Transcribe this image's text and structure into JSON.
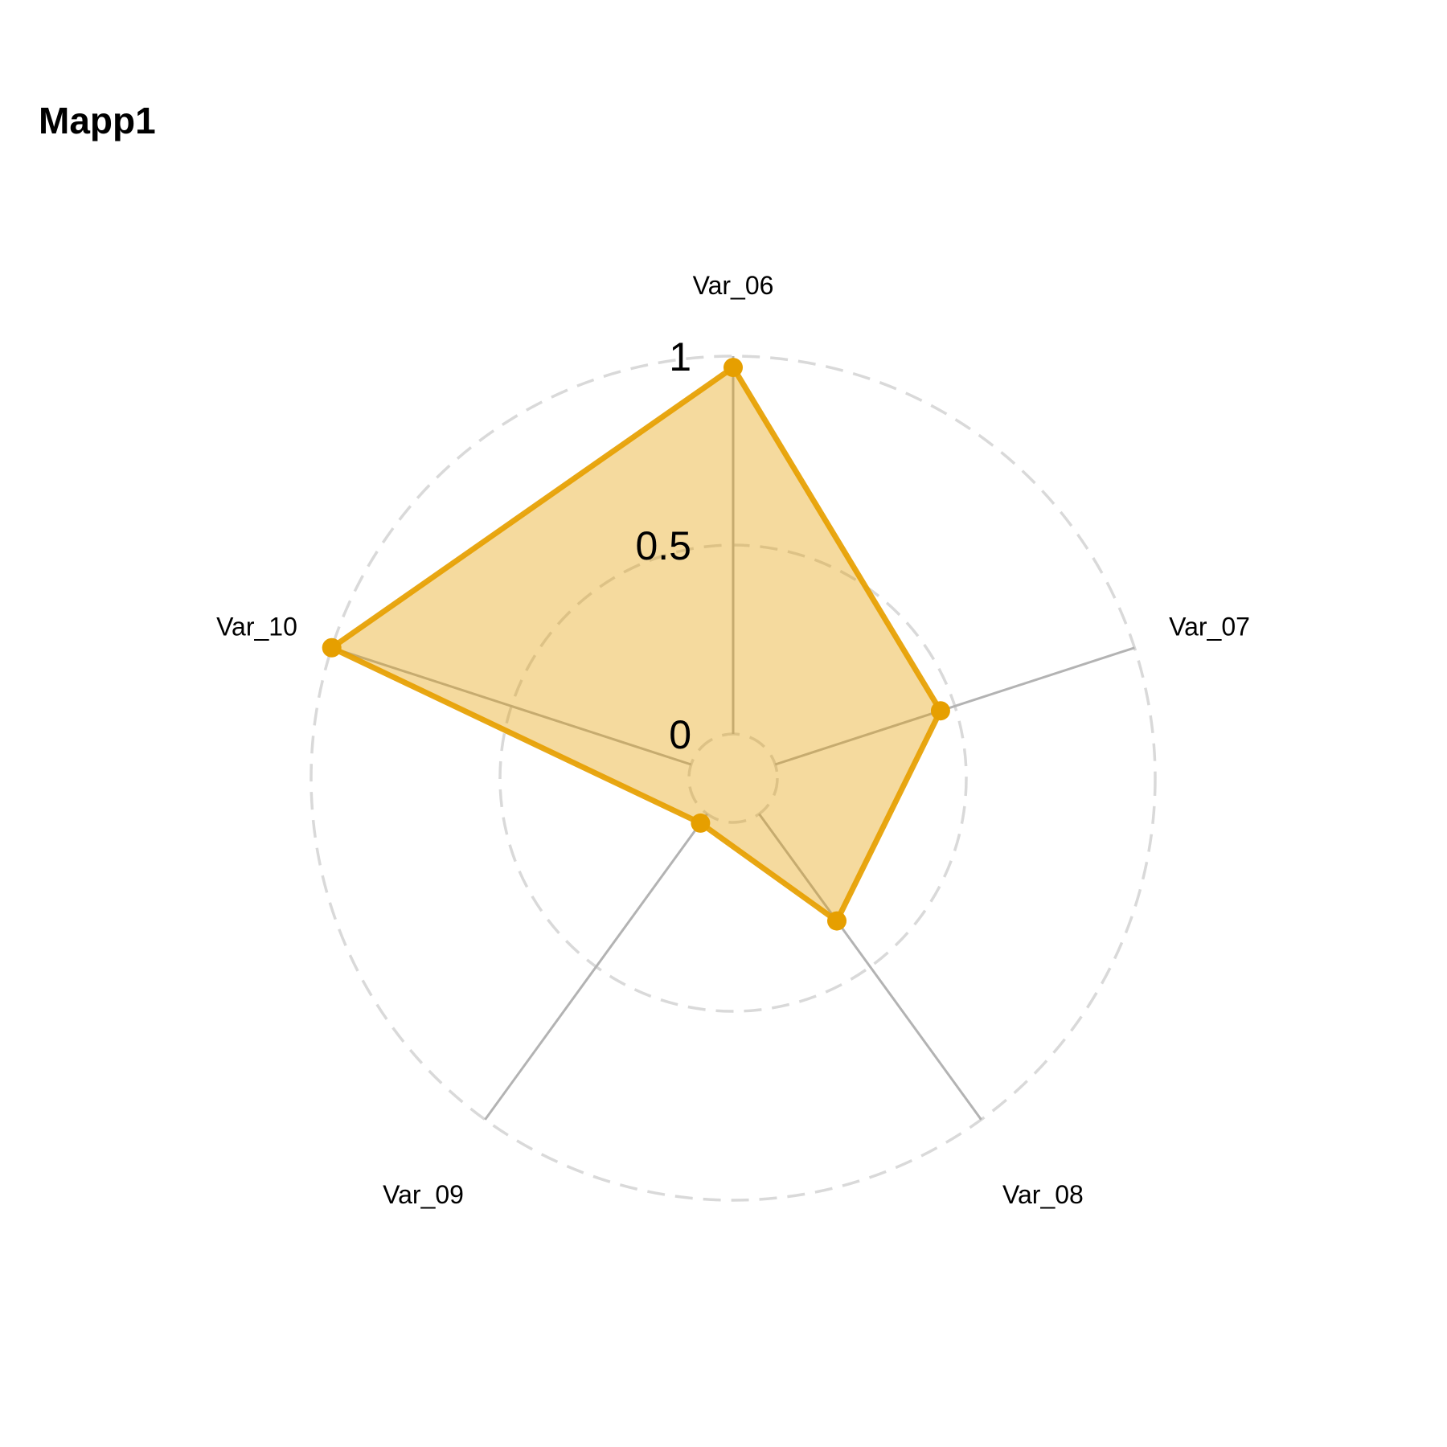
{
  "chart_data": {
    "type": "radar",
    "title": "Mapp1",
    "axes": [
      "Var_06",
      "Var_07",
      "Var_08",
      "Var_09",
      "Var_10"
    ],
    "grid_levels": [
      0,
      0.5,
      1
    ],
    "grid_labels": [
      "0",
      "0.5",
      "1"
    ],
    "ylim": [
      0,
      1
    ],
    "series": [
      {
        "values": [
          0.97,
          0.46,
          0.35,
          0.03,
          1.0
        ],
        "color": "#E69F00"
      }
    ],
    "legend": false
  }
}
